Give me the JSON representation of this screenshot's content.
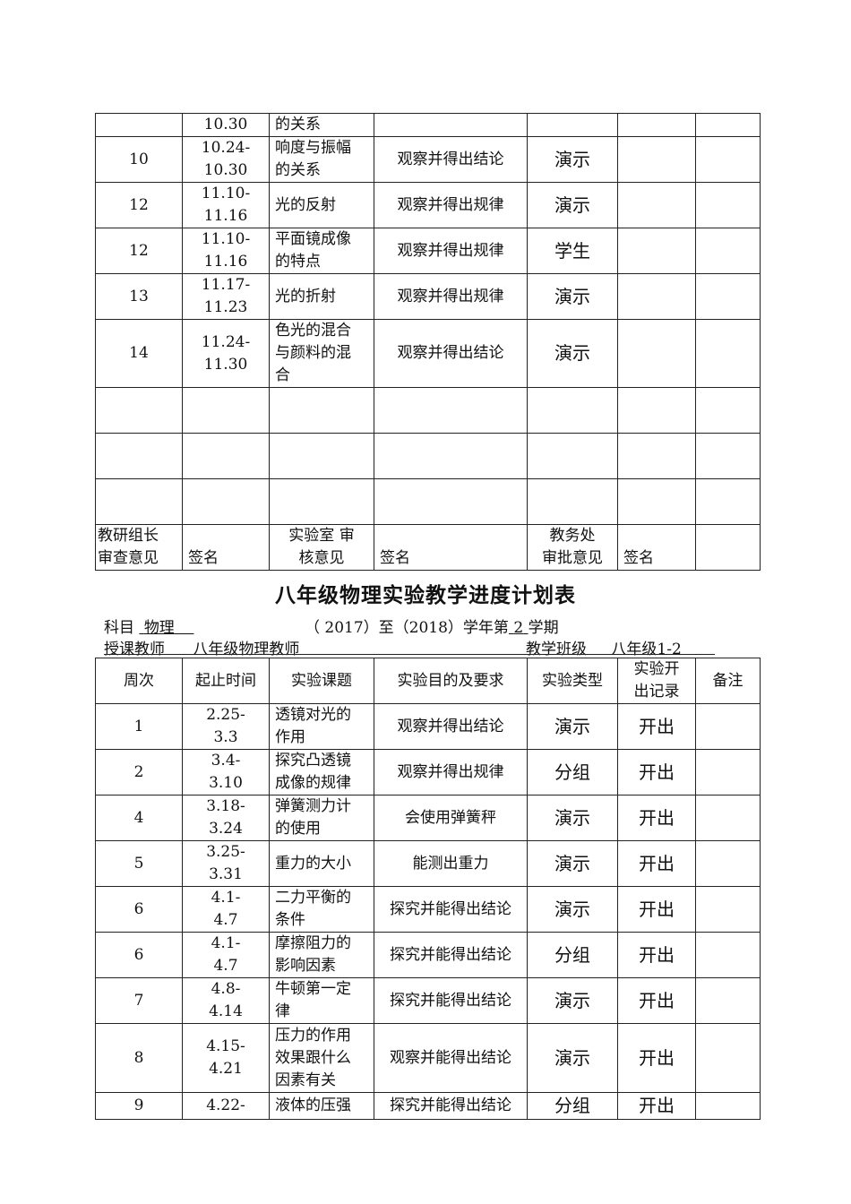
{
  "top_table": {
    "rows": [
      {
        "week": "",
        "dates": [
          "10.30"
        ],
        "topic": [
          "的关系"
        ],
        "goal": "",
        "type": "",
        "record": "",
        "note": ""
      },
      {
        "week": "10",
        "dates": [
          "10.24-",
          "10.30"
        ],
        "topic": [
          "响度与振幅",
          "的关系"
        ],
        "goal": "观察并得出结论",
        "type": "演示",
        "record": "",
        "note": ""
      },
      {
        "week": "12",
        "dates": [
          "11.10-",
          "11.16"
        ],
        "topic": [
          "光的反射"
        ],
        "goal": "观察并得出规律",
        "type": "演示",
        "record": "",
        "note": ""
      },
      {
        "week": "12",
        "dates": [
          "11.10-",
          "11.16"
        ],
        "topic": [
          "平面镜成像",
          "的特点"
        ],
        "goal": "观察并得出规律",
        "type": "学生",
        "record": "",
        "note": ""
      },
      {
        "week": "13",
        "dates": [
          "11.17-",
          "11.23"
        ],
        "topic": [
          "光的折射"
        ],
        "goal": "观察并得出规律",
        "type": "演示",
        "record": "",
        "note": ""
      },
      {
        "week": "14",
        "dates": [
          "11.24-",
          "11.30"
        ],
        "topic": [
          "色光的混合",
          "与颜料的混",
          "合"
        ],
        "goal": "观察并得出结论",
        "type": "演示",
        "record": "",
        "note": ""
      },
      {
        "week": "",
        "dates": [],
        "topic": [],
        "goal": "",
        "type": "",
        "record": "",
        "note": ""
      },
      {
        "week": "",
        "dates": [],
        "topic": [],
        "goal": "",
        "type": "",
        "record": "",
        "note": ""
      },
      {
        "week": "",
        "dates": [],
        "topic": [],
        "goal": "",
        "type": "",
        "record": "",
        "note": ""
      }
    ],
    "signoff": {
      "group_leader": [
        "教研组长",
        "审查意见"
      ],
      "lab": [
        "实验室 审",
        "核意见"
      ],
      "office": [
        "教务处",
        "审批意见"
      ],
      "sign": "签名"
    }
  },
  "title": "八年级物理实验教学进度计划表",
  "meta": {
    "subject_label": "科目",
    "subject": "物理",
    "year_prefix": "（ 2017）至（2018）学年第",
    "term": "2",
    "term_suffix": "学期",
    "teacher_label": "授课教师",
    "teacher": "八年级物理教师",
    "class_label": "教学班级",
    "class": "八年级1-2"
  },
  "main_table": {
    "headers": [
      "周次",
      "起止时间",
      "实验课题",
      "实验目的及要求",
      "实验类型",
      [
        "实验开",
        "出记录"
      ],
      "备注"
    ],
    "rows": [
      {
        "week": "1",
        "dates": [
          "2.25-",
          "3.3"
        ],
        "topic": [
          "透镜对光的",
          "作用"
        ],
        "goal": "观察并得出结论",
        "type": "演示",
        "record": "开出",
        "note": ""
      },
      {
        "week": "2",
        "dates": [
          "3.4-",
          "3.10"
        ],
        "topic": [
          "探究凸透镜",
          "成像的规律"
        ],
        "goal": "观察并得出规律",
        "type": "分组",
        "record": "开出",
        "note": ""
      },
      {
        "week": "4",
        "dates": [
          "3.18-",
          "3.24"
        ],
        "topic": [
          "弹簧测力计",
          "的使用"
        ],
        "goal": "会使用弹簧秤",
        "type": "演示",
        "record": "开出",
        "note": ""
      },
      {
        "week": "5",
        "dates": [
          "3.25-",
          "3.31"
        ],
        "topic": [
          "重力的大小"
        ],
        "goal": "能测出重力",
        "type": "演示",
        "record": "开出",
        "note": ""
      },
      {
        "week": "6",
        "dates": [
          "4.1-",
          "4.7"
        ],
        "topic": [
          "二力平衡的",
          "条件"
        ],
        "goal": "探究并能得出结论",
        "type": "演示",
        "record": "开出",
        "note": ""
      },
      {
        "week": "6",
        "dates": [
          "4.1-",
          "4.7"
        ],
        "topic": [
          "摩擦阻力的",
          "影响因素"
        ],
        "goal": "探究并能得出结论",
        "type": "分组",
        "record": "开出",
        "note": ""
      },
      {
        "week": "7",
        "dates": [
          "4.8-",
          "4.14"
        ],
        "topic": [
          "牛顿第一定",
          "律"
        ],
        "goal": "探究并能得出结论",
        "type": "演示",
        "record": "开出",
        "note": ""
      },
      {
        "week": "8",
        "dates": [
          "4.15-",
          "4.21"
        ],
        "topic": [
          "压力的作用",
          "效果跟什么",
          "因素有关"
        ],
        "goal": "观察并能得出结论",
        "type": "演示",
        "record": "开出",
        "note": ""
      },
      {
        "week": "9",
        "dates": [
          "4.22-"
        ],
        "topic": [
          "液体的压强"
        ],
        "goal": "探究并能得出结论",
        "type": "分组",
        "record": "开出",
        "note": ""
      }
    ]
  }
}
